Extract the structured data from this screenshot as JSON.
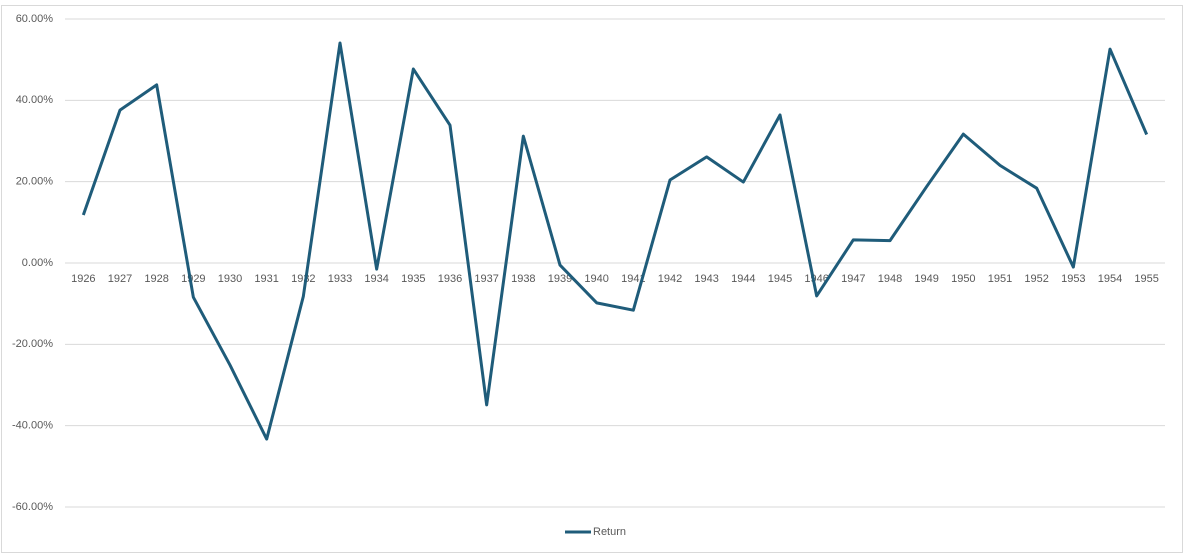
{
  "chart_data": {
    "type": "line",
    "categories": [
      "1926",
      "1927",
      "1928",
      "1929",
      "1930",
      "1931",
      "1932",
      "1933",
      "1934",
      "1935",
      "1936",
      "1937",
      "1938",
      "1939",
      "1940",
      "1941",
      "1942",
      "1943",
      "1944",
      "1945",
      "1946",
      "1947",
      "1948",
      "1949",
      "1950",
      "1951",
      "1952",
      "1953",
      "1954",
      "1955"
    ],
    "series": [
      {
        "name": "Return",
        "color": "#1f5c7a",
        "values": [
          11.8,
          37.6,
          43.8,
          -8.4,
          -25.1,
          -43.3,
          -8.2,
          54.1,
          -1.5,
          47.7,
          33.9,
          -34.9,
          31.2,
          -0.5,
          -9.8,
          -11.6,
          20.4,
          26.1,
          19.9,
          36.4,
          -8.1,
          5.7,
          5.5,
          18.8,
          31.7,
          24.0,
          18.4,
          -1.0,
          52.6,
          31.6
        ]
      }
    ],
    "ylim": [
      -60,
      60
    ],
    "yticks": [
      {
        "value": -60,
        "label": "-60.00%"
      },
      {
        "value": -40,
        "label": "-40.00%"
      },
      {
        "value": -20,
        "label": "-20.00%"
      },
      {
        "value": 0,
        "label": "0.00%"
      },
      {
        "value": 20,
        "label": "20.00%"
      },
      {
        "value": 40,
        "label": "40.00%"
      },
      {
        "value": 60,
        "label": "60.00%"
      }
    ],
    "grid": true,
    "legend": "bottom"
  }
}
